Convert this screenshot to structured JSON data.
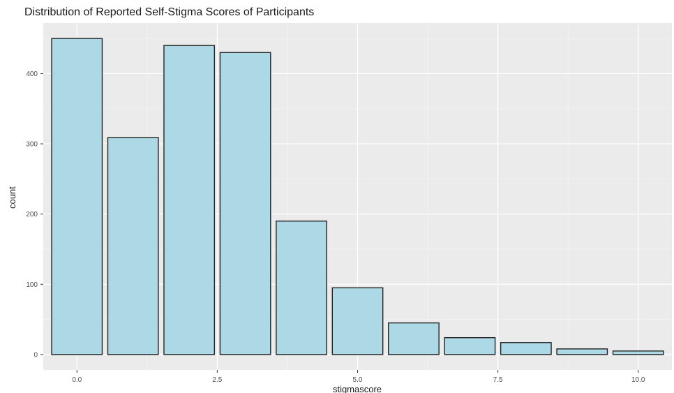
{
  "chart_data": {
    "type": "bar",
    "title": "Distribution of Reported Self-Stigma Scores of Participants",
    "xlabel": "stigmascore",
    "ylabel": "count",
    "x": [
      0,
      1,
      2,
      3,
      4,
      5,
      6,
      7,
      8,
      9,
      10
    ],
    "values": [
      450,
      309,
      440,
      430,
      190,
      95,
      45,
      24,
      17,
      8,
      5
    ],
    "xlim": [
      -0.6,
      10.6
    ],
    "ylim": [
      -22,
      472
    ],
    "xticks": [
      0.0,
      2.5,
      5.0,
      7.5,
      10.0
    ],
    "xtick_labels": [
      "0.0",
      "2.5",
      "5.0",
      "7.5",
      "10.0"
    ],
    "yticks": [
      0,
      100,
      200,
      300,
      400
    ],
    "ytick_labels": [
      "0",
      "100",
      "200",
      "300",
      "400"
    ],
    "grid": true,
    "colors": {
      "panel": "#ebebeb",
      "gridMajor": "#ffffff",
      "bar_fill": "#add8e6",
      "bar_stroke": "#222222"
    }
  }
}
